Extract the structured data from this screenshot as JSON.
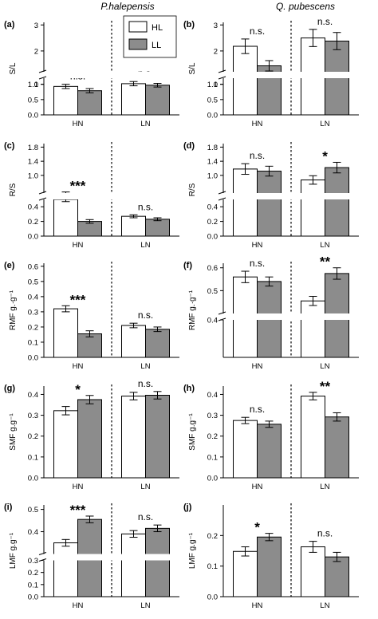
{
  "column_titles": [
    "P.halepensis",
    "Q. pubescens"
  ],
  "legend": [
    {
      "label": "HL",
      "color": "#ffffff"
    },
    {
      "label": "LL",
      "color": "#8c8c8c"
    }
  ],
  "chart_data": [
    {
      "type": "bar",
      "panel": "(a)",
      "ylabel": "S/L",
      "categories": [
        "HN",
        "LN"
      ],
      "series": [
        {
          "name": "HL",
          "values": [
            0.93,
            1.02
          ],
          "errors": [
            0.07,
            0.07
          ]
        },
        {
          "name": "LL",
          "values": [
            0.79,
            0.97
          ],
          "errors": [
            0.07,
            0.06
          ]
        }
      ],
      "significance": [
        "n.s.",
        "n.s."
      ],
      "axis": {
        "lower": [
          0,
          1.2
        ],
        "upper": [
          1.2,
          3.1
        ],
        "lower_ticks": [
          "0.0",
          "0.5",
          "1.0"
        ],
        "upper_ticks": [
          "1",
          "2",
          "3"
        ]
      }
    },
    {
      "type": "bar",
      "panel": "(b)",
      "ylabel": "S/L",
      "categories": [
        "HN",
        "LN"
      ],
      "series": [
        {
          "name": "HL",
          "values": [
            2.18,
            2.5
          ],
          "errors": [
            0.28,
            0.33
          ]
        },
        {
          "name": "LL",
          "values": [
            1.43,
            2.38
          ],
          "errors": [
            0.2,
            0.33
          ]
        }
      ],
      "significance": [
        "n.s.",
        "n.s."
      ],
      "axis": {
        "lower": [
          0,
          1.2
        ],
        "upper": [
          1.2,
          3.1
        ],
        "lower_ticks": [
          "0.0",
          "0.5",
          "1.0"
        ],
        "upper_ticks": [
          "1",
          "2",
          "3"
        ]
      }
    },
    {
      "type": "bar",
      "panel": "(c)",
      "ylabel": "R/S",
      "categories": [
        "HN",
        "LN"
      ],
      "series": [
        {
          "name": "HL",
          "values": [
            0.5,
            0.27
          ],
          "errors": [
            0.03,
            0.02
          ]
        },
        {
          "name": "LL",
          "values": [
            0.2,
            0.23
          ],
          "errors": [
            0.025,
            0.02
          ]
        }
      ],
      "significance": [
        "***",
        "n.s."
      ],
      "axis": {
        "lower": [
          0,
          0.5
        ],
        "upper": [
          0.5,
          1.9
        ],
        "lower_ticks": [
          "0.0",
          "0.2",
          "0.4"
        ],
        "upper_ticks": [
          "1.0",
          "1.4",
          "1.8"
        ]
      }
    },
    {
      "type": "bar",
      "panel": "(d)",
      "ylabel": "R/S",
      "categories": [
        "HN",
        "LN"
      ],
      "series": [
        {
          "name": "HL",
          "values": [
            1.18,
            0.87
          ],
          "errors": [
            0.15,
            0.12
          ]
        },
        {
          "name": "LL",
          "values": [
            1.12,
            1.22
          ],
          "errors": [
            0.14,
            0.15
          ]
        }
      ],
      "significance": [
        "n.s.",
        "*"
      ],
      "axis": {
        "lower": [
          0,
          0.5
        ],
        "upper": [
          0.5,
          1.9
        ],
        "lower_ticks": [
          "0.0",
          "0.2",
          "0.4"
        ],
        "upper_ticks": [
          "1.0",
          "1.4",
          "1.8"
        ]
      }
    },
    {
      "type": "bar",
      "panel": "(e)",
      "ylabel": "RMF g.·g⁻¹",
      "categories": [
        "HN",
        "LN"
      ],
      "series": [
        {
          "name": "HL",
          "values": [
            0.32,
            0.21
          ],
          "errors": [
            0.02,
            0.015
          ]
        },
        {
          "name": "LL",
          "values": [
            0.155,
            0.185
          ],
          "errors": [
            0.02,
            0.015
          ]
        }
      ],
      "significance": [
        "***",
        "n.s."
      ],
      "axis": {
        "range": [
          0,
          0.62
        ],
        "ticks": [
          "0.0",
          "0.1",
          "0.2",
          "0.3",
          "0.4",
          "0.5",
          "0.6"
        ]
      }
    },
    {
      "type": "bar",
      "panel": "(f)",
      "ylabel": "RMF g.·g⁻¹",
      "categories": [
        "HN",
        "LN"
      ],
      "series": [
        {
          "name": "HL",
          "values": [
            0.56,
            0.455
          ],
          "errors": [
            0.025,
            0.02
          ]
        },
        {
          "name": "LL",
          "values": [
            0.54,
            0.575
          ],
          "errors": [
            0.02,
            0.025
          ]
        }
      ],
      "significance": [
        "n.s.",
        "**"
      ],
      "axis": {
        "lower": [
          0,
          0.4
        ],
        "upper": [
          0.4,
          0.62
        ],
        "lower_ticks": [],
        "upper_ticks": [
          "0.4",
          "0.5",
          "0.6"
        ]
      }
    },
    {
      "type": "bar",
      "panel": "(g)",
      "ylabel": "SMF g.g⁻¹",
      "categories": [
        "HN",
        "LN"
      ],
      "series": [
        {
          "name": "HL",
          "values": [
            0.322,
            0.392
          ],
          "errors": [
            0.02,
            0.018
          ]
        },
        {
          "name": "LL",
          "values": [
            0.375,
            0.396
          ],
          "errors": [
            0.02,
            0.018
          ]
        }
      ],
      "significance": [
        "*",
        "n.s."
      ],
      "axis": {
        "range": [
          0,
          0.44
        ],
        "ticks": [
          "0.0",
          "0.1",
          "0.2",
          "0.3",
          "0.4"
        ]
      }
    },
    {
      "type": "bar",
      "panel": "(h)",
      "ylabel": "SMF g.g⁻¹",
      "categories": [
        "HN",
        "LN"
      ],
      "series": [
        {
          "name": "HL",
          "values": [
            0.275,
            0.392
          ],
          "errors": [
            0.015,
            0.018
          ]
        },
        {
          "name": "LL",
          "values": [
            0.257,
            0.292
          ],
          "errors": [
            0.015,
            0.02
          ]
        }
      ],
      "significance": [
        "n.s.",
        "**"
      ],
      "axis": {
        "range": [
          0,
          0.44
        ],
        "ticks": [
          "0.0",
          "0.1",
          "0.2",
          "0.3",
          "0.4"
        ]
      }
    },
    {
      "type": "bar",
      "panel": "(i)",
      "ylabel": "LMF g.g⁻¹",
      "categories": [
        "HN",
        "LN"
      ],
      "series": [
        {
          "name": "HL",
          "values": [
            0.35,
            0.39
          ],
          "errors": [
            0.015,
            0.015
          ]
        },
        {
          "name": "LL",
          "values": [
            0.455,
            0.415
          ],
          "errors": [
            0.015,
            0.015
          ]
        }
      ],
      "significance": [
        "***",
        "n.s."
      ],
      "axis": {
        "lower": [
          0,
          0.3
        ],
        "upper": [
          0.3,
          0.52
        ],
        "lower_ticks": [
          "0.0",
          "0.1",
          "0.2"
        ],
        "upper_ticks": [
          "0.3",
          "0.4",
          "0.5"
        ]
      }
    },
    {
      "type": "bar",
      "panel": "(j)",
      "ylabel": "LMF g.g⁻¹",
      "categories": [
        "HN",
        "LN"
      ],
      "series": [
        {
          "name": "HL",
          "values": [
            0.148,
            0.163
          ],
          "errors": [
            0.015,
            0.018
          ]
        },
        {
          "name": "LL",
          "values": [
            0.195,
            0.13
          ],
          "errors": [
            0.012,
            0.015
          ]
        }
      ],
      "significance": [
        "*",
        "n.s."
      ],
      "axis": {
        "range": [
          0,
          0.3
        ],
        "ticks": [
          "0.0",
          "0.1",
          "0.2"
        ]
      }
    }
  ]
}
